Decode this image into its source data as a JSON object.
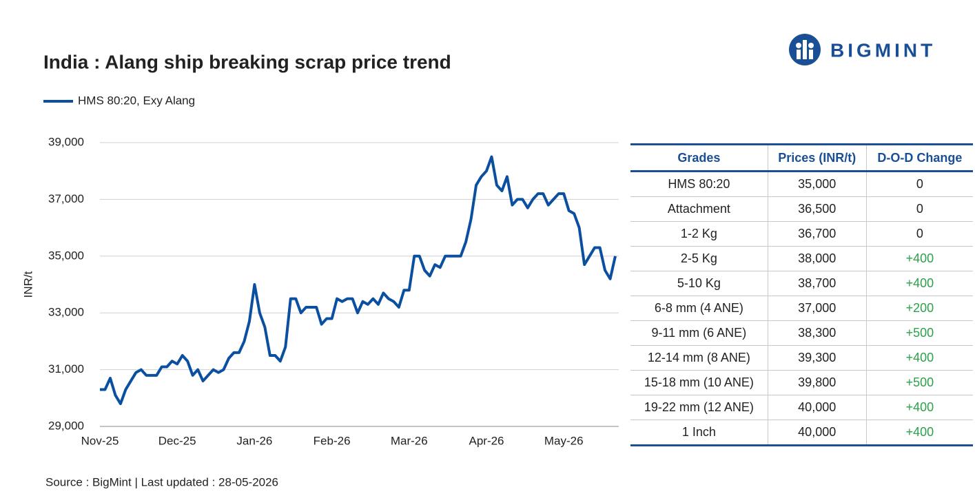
{
  "chart_data": {
    "type": "line",
    "title": "India : Alang ship breaking scrap price trend",
    "y_label": "INR/t",
    "source": "Source : BigMint | Last updated : 28-05-2026",
    "categories": [
      "Nov-25",
      null,
      null,
      null,
      null,
      null,
      null,
      null,
      null,
      null,
      null,
      null,
      null,
      null,
      null,
      "Dec-25",
      null,
      null,
      null,
      null,
      null,
      null,
      null,
      null,
      null,
      null,
      null,
      null,
      null,
      null,
      "Jan-26",
      null,
      null,
      null,
      null,
      null,
      null,
      null,
      null,
      null,
      null,
      null,
      null,
      null,
      null,
      "Feb-26",
      null,
      null,
      null,
      null,
      null,
      null,
      null,
      null,
      null,
      null,
      null,
      null,
      null,
      null,
      "Mar-26",
      null,
      null,
      null,
      null,
      null,
      null,
      null,
      null,
      null,
      null,
      null,
      null,
      null,
      null,
      "Apr-26",
      null,
      null,
      null,
      null,
      null,
      null,
      null,
      null,
      null,
      null,
      null,
      null,
      null,
      null,
      "May-26",
      null,
      null,
      null,
      null,
      null,
      null,
      null,
      null,
      null,
      null
    ],
    "series": [
      {
        "name": "HMS 80:20, Exy Alang",
        "color": "#0b4fa0",
        "values": [
          30300,
          30300,
          30700,
          30100,
          29800,
          30300,
          30600,
          30900,
          31000,
          30800,
          30800,
          30800,
          31100,
          31100,
          31300,
          31200,
          31500,
          31300,
          30800,
          31000,
          30600,
          30800,
          31000,
          30900,
          31000,
          31400,
          31600,
          31600,
          32000,
          32700,
          34000,
          33000,
          32500,
          31500,
          31500,
          31300,
          31800,
          33500,
          33500,
          33000,
          33200,
          33200,
          33200,
          32600,
          32800,
          32800,
          33500,
          33400,
          33500,
          33500,
          33000,
          33400,
          33300,
          33500,
          33300,
          33700,
          33500,
          33400,
          33200,
          33800,
          33800,
          35000,
          35000,
          34500,
          34300,
          34700,
          34600,
          35000,
          35000,
          35000,
          35000,
          35500,
          36300,
          37500,
          37800,
          38000,
          38500,
          37500,
          37300,
          37800,
          36800,
          37000,
          37000,
          36700,
          37000,
          37200,
          37200,
          36800,
          37000,
          37200,
          37200,
          36600,
          36500,
          36000,
          34700,
          35000,
          35300,
          35300,
          34500,
          34200,
          35000
        ]
      }
    ],
    "ylim": [
      29000,
      39000
    ],
    "yticks": [
      {
        "value": 29000,
        "label": "29,000"
      },
      {
        "value": 31000,
        "label": "31,000"
      },
      {
        "value": 33000,
        "label": "33,000"
      },
      {
        "value": 35000,
        "label": "35,000"
      },
      {
        "value": 37000,
        "label": "37,000"
      },
      {
        "value": 39000,
        "label": "39,000"
      }
    ],
    "grid": true
  },
  "logo": "BIGMINT",
  "table": {
    "columns": [
      "Grades",
      "Prices (INR/t)",
      "D-O-D Change"
    ],
    "rows": [
      [
        "HMS 80:20",
        "35,000",
        "0"
      ],
      [
        "Attachment",
        "36,500",
        "0"
      ],
      [
        "1-2 Kg",
        "36,700",
        "0"
      ],
      [
        "2-5 Kg",
        "38,000",
        "+400"
      ],
      [
        "5-10 Kg",
        "38,700",
        "+400"
      ],
      [
        "6-8 mm (4 ANE)",
        "37,000",
        "+200"
      ],
      [
        "9-11 mm (6 ANE)",
        "38,300",
        "+500"
      ],
      [
        "12-14 mm (8 ANE)",
        "39,300",
        "+400"
      ],
      [
        "15-18 mm (10 ANE)",
        "39,800",
        "+500"
      ],
      [
        "19-22 mm (12 ANE)",
        "40,000",
        "+400"
      ],
      [
        "1 Inch",
        "40,000",
        "+400"
      ]
    ]
  }
}
